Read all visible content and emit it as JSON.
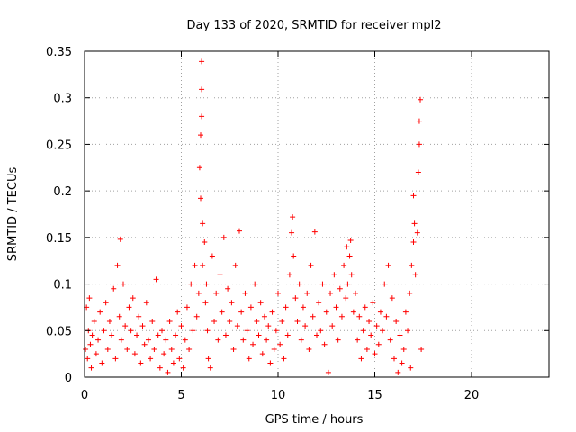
{
  "chart_data": {
    "type": "scatter",
    "title": "Day 133 of 2020, SRMTID for receiver mpl2",
    "xlabel": "GPS time / hours",
    "ylabel": "SRMTID / TECUs",
    "xlim": [
      0,
      24
    ],
    "ylim": [
      0,
      0.35
    ],
    "x_ticks": [
      0,
      5,
      10,
      15,
      20
    ],
    "x_tick_labels": [
      "0",
      "5",
      "10",
      "15",
      "20"
    ],
    "y_ticks": [
      0,
      0.05,
      0.1,
      0.15,
      0.2,
      0.25,
      0.3,
      0.35
    ],
    "y_tick_labels": [
      "0",
      "0.05",
      "0.1",
      "0.15",
      "0.2",
      "0.25",
      "0.3",
      "0.35"
    ],
    "grid": true,
    "marker": "+",
    "color": "#ff0000",
    "series": [
      {
        "name": "SRMTID",
        "points": [
          [
            0.05,
            0.03
          ],
          [
            0.1,
            0.075
          ],
          [
            0.15,
            0.02
          ],
          [
            0.2,
            0.05
          ],
          [
            0.25,
            0.085
          ],
          [
            0.3,
            0.035
          ],
          [
            0.35,
            0.01
          ],
          [
            0.4,
            0.045
          ],
          [
            0.5,
            0.06
          ],
          [
            0.6,
            0.025
          ],
          [
            0.7,
            0.04
          ],
          [
            0.8,
            0.07
          ],
          [
            0.9,
            0.015
          ],
          [
            1.0,
            0.05
          ],
          [
            1.1,
            0.08
          ],
          [
            1.2,
            0.03
          ],
          [
            1.3,
            0.06
          ],
          [
            1.4,
            0.045
          ],
          [
            1.5,
            0.095
          ],
          [
            1.6,
            0.02
          ],
          [
            1.7,
            0.12
          ],
          [
            1.8,
            0.065
          ],
          [
            1.85,
            0.148
          ],
          [
            1.9,
            0.04
          ],
          [
            2.0,
            0.1
          ],
          [
            2.1,
            0.055
          ],
          [
            2.2,
            0.03
          ],
          [
            2.3,
            0.075
          ],
          [
            2.4,
            0.05
          ],
          [
            2.5,
            0.085
          ],
          [
            2.6,
            0.025
          ],
          [
            2.7,
            0.045
          ],
          [
            2.8,
            0.065
          ],
          [
            2.9,
            0.015
          ],
          [
            3.0,
            0.055
          ],
          [
            3.1,
            0.035
          ],
          [
            3.2,
            0.08
          ],
          [
            3.3,
            0.04
          ],
          [
            3.4,
            0.02
          ],
          [
            3.5,
            0.06
          ],
          [
            3.6,
            0.03
          ],
          [
            3.7,
            0.105
          ],
          [
            3.8,
            0.045
          ],
          [
            3.9,
            0.01
          ],
          [
            4.0,
            0.05
          ],
          [
            4.1,
            0.025
          ],
          [
            4.2,
            0.04
          ],
          [
            4.3,
            0.005
          ],
          [
            4.4,
            0.06
          ],
          [
            4.5,
            0.03
          ],
          [
            4.6,
            0.015
          ],
          [
            4.7,
            0.045
          ],
          [
            4.8,
            0.07
          ],
          [
            4.9,
            0.02
          ],
          [
            5.0,
            0.055
          ],
          [
            5.1,
            0.01
          ],
          [
            5.2,
            0.04
          ],
          [
            5.3,
            0.075
          ],
          [
            5.4,
            0.03
          ],
          [
            5.5,
            0.1
          ],
          [
            5.6,
            0.05
          ],
          [
            5.7,
            0.12
          ],
          [
            5.8,
            0.065
          ],
          [
            5.9,
            0.09
          ],
          [
            5.95,
            0.225
          ],
          [
            6.0,
            0.192
          ],
          [
            6.0,
            0.26
          ],
          [
            6.05,
            0.28
          ],
          [
            6.05,
            0.309
          ],
          [
            6.05,
            0.339
          ],
          [
            6.1,
            0.165
          ],
          [
            6.1,
            0.12
          ],
          [
            6.2,
            0.145
          ],
          [
            6.25,
            0.08
          ],
          [
            6.3,
            0.1
          ],
          [
            6.35,
            0.05
          ],
          [
            6.4,
            0.02
          ],
          [
            6.5,
            0.01
          ],
          [
            6.6,
            0.13
          ],
          [
            6.7,
            0.06
          ],
          [
            6.8,
            0.09
          ],
          [
            6.9,
            0.04
          ],
          [
            7.0,
            0.11
          ],
          [
            7.1,
            0.07
          ],
          [
            7.2,
            0.15
          ],
          [
            7.3,
            0.045
          ],
          [
            7.4,
            0.095
          ],
          [
            7.5,
            0.06
          ],
          [
            7.6,
            0.08
          ],
          [
            7.7,
            0.03
          ],
          [
            7.8,
            0.12
          ],
          [
            7.9,
            0.055
          ],
          [
            8.0,
            0.157
          ],
          [
            8.1,
            0.07
          ],
          [
            8.2,
            0.04
          ],
          [
            8.3,
            0.09
          ],
          [
            8.4,
            0.05
          ],
          [
            8.5,
            0.02
          ],
          [
            8.6,
            0.075
          ],
          [
            8.7,
            0.035
          ],
          [
            8.8,
            0.1
          ],
          [
            8.9,
            0.06
          ],
          [
            9.0,
            0.045
          ],
          [
            9.1,
            0.08
          ],
          [
            9.2,
            0.025
          ],
          [
            9.3,
            0.065
          ],
          [
            9.4,
            0.04
          ],
          [
            9.5,
            0.055
          ],
          [
            9.6,
            0.015
          ],
          [
            9.7,
            0.07
          ],
          [
            9.8,
            0.03
          ],
          [
            9.9,
            0.05
          ],
          [
            10.0,
            0.09
          ],
          [
            10.1,
            0.035
          ],
          [
            10.2,
            0.06
          ],
          [
            10.3,
            0.02
          ],
          [
            10.4,
            0.075
          ],
          [
            10.5,
            0.045
          ],
          [
            10.6,
            0.11
          ],
          [
            10.7,
            0.155
          ],
          [
            10.75,
            0.172
          ],
          [
            10.8,
            0.13
          ],
          [
            10.9,
            0.085
          ],
          [
            11.0,
            0.06
          ],
          [
            11.1,
            0.1
          ],
          [
            11.2,
            0.04
          ],
          [
            11.3,
            0.075
          ],
          [
            11.4,
            0.055
          ],
          [
            11.5,
            0.09
          ],
          [
            11.6,
            0.03
          ],
          [
            11.7,
            0.12
          ],
          [
            11.8,
            0.065
          ],
          [
            11.9,
            0.156
          ],
          [
            12.0,
            0.045
          ],
          [
            12.1,
            0.08
          ],
          [
            12.2,
            0.05
          ],
          [
            12.3,
            0.1
          ],
          [
            12.4,
            0.035
          ],
          [
            12.5,
            0.07
          ],
          [
            12.6,
            0.005
          ],
          [
            12.7,
            0.09
          ],
          [
            12.8,
            0.055
          ],
          [
            12.9,
            0.11
          ],
          [
            13.0,
            0.075
          ],
          [
            13.1,
            0.04
          ],
          [
            13.2,
            0.095
          ],
          [
            13.3,
            0.065
          ],
          [
            13.4,
            0.12
          ],
          [
            13.5,
            0.085
          ],
          [
            13.55,
            0.14
          ],
          [
            13.6,
            0.1
          ],
          [
            13.7,
            0.13
          ],
          [
            13.75,
            0.147
          ],
          [
            13.8,
            0.11
          ],
          [
            13.9,
            0.07
          ],
          [
            14.0,
            0.09
          ],
          [
            14.1,
            0.04
          ],
          [
            14.2,
            0.065
          ],
          [
            14.3,
            0.02
          ],
          [
            14.4,
            0.05
          ],
          [
            14.5,
            0.075
          ],
          [
            14.6,
            0.03
          ],
          [
            14.7,
            0.06
          ],
          [
            14.8,
            0.045
          ],
          [
            14.9,
            0.08
          ],
          [
            15.0,
            0.025
          ],
          [
            15.1,
            0.055
          ],
          [
            15.2,
            0.035
          ],
          [
            15.3,
            0.07
          ],
          [
            15.4,
            0.05
          ],
          [
            15.5,
            0.1
          ],
          [
            15.6,
            0.065
          ],
          [
            15.7,
            0.12
          ],
          [
            15.8,
            0.04
          ],
          [
            15.9,
            0.085
          ],
          [
            16.0,
            0.02
          ],
          [
            16.1,
            0.06
          ],
          [
            16.2,
            0.005
          ],
          [
            16.3,
            0.045
          ],
          [
            16.4,
            0.015
          ],
          [
            16.5,
            0.03
          ],
          [
            16.6,
            0.07
          ],
          [
            16.7,
            0.05
          ],
          [
            16.8,
            0.09
          ],
          [
            16.85,
            0.01
          ],
          [
            16.9,
            0.12
          ],
          [
            17.0,
            0.195
          ],
          [
            17.0,
            0.145
          ],
          [
            17.05,
            0.165
          ],
          [
            17.1,
            0.11
          ],
          [
            17.2,
            0.155
          ],
          [
            17.25,
            0.22
          ],
          [
            17.3,
            0.25
          ],
          [
            17.3,
            0.275
          ],
          [
            17.35,
            0.298
          ],
          [
            17.4,
            0.03
          ]
        ]
      }
    ]
  }
}
